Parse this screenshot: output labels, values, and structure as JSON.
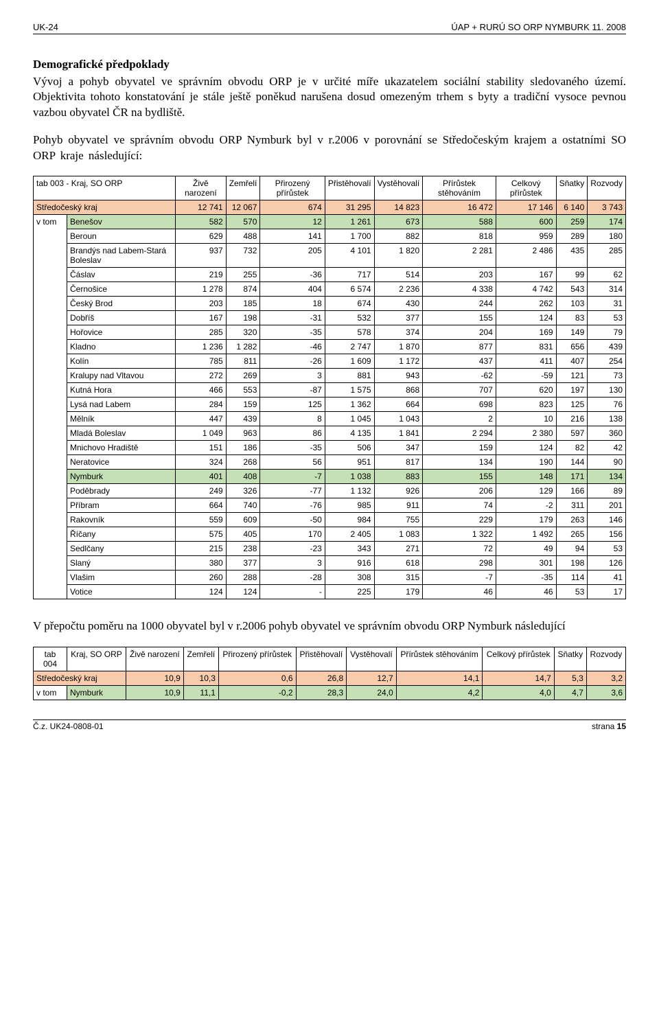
{
  "header": {
    "left": "UK-24",
    "right": "ÚAP + RURÚ SO ORP NYMBURK 11. 2008"
  },
  "section_title": "Demografické předpoklady",
  "para1": "Vývoj a pohyb obyvatel ve správním obvodu ORP je v určité míře ukazatelem sociální stability sledovaného území. Objektivita tohoto konstatování je stále ještě poněkud narušena dosud omezeným trhem s byty a tradiční vysoce pevnou vazbou obyvatel ČR na bydliště.",
  "para2": "Pohyb obyvatel ve správním obvodu ORP Nymburk byl v r.2006 v porovnání se Středočeským krajem a ostatními SO ORP kraje následující:",
  "table003": {
    "header_label": "tab 003 - Kraj, SO ORP",
    "columns": [
      "Živě narození",
      "Zemřelí",
      "Přirozený přírůstek",
      "Přistěhovalí",
      "Vystěhovalí",
      "Přírůstek stěhováním",
      "Celkový přírůstek",
      "Sňatky",
      "Rozvody"
    ],
    "first_label_col2": "Benešov",
    "vtom_label": "v tom",
    "rows": [
      {
        "label": [
          "Středočeský kraj"
        ],
        "span": 2,
        "highlight": "pink",
        "cells": [
          "12 741",
          "12 067",
          "674",
          "31 295",
          "14 823",
          "16 472",
          "17 146",
          "6 140",
          "3 743"
        ]
      },
      {
        "label": [
          "v tom",
          "Benešov"
        ],
        "span": 0,
        "highlight": "green",
        "cells": [
          "582",
          "570",
          "12",
          "1 261",
          "673",
          "588",
          "600",
          "259",
          "174"
        ]
      },
      {
        "label": [
          "Beroun"
        ],
        "span": 1,
        "cells": [
          "629",
          "488",
          "141",
          "1 700",
          "882",
          "818",
          "959",
          "289",
          "180"
        ]
      },
      {
        "label": [
          "Brandýs nad Labem-Stará Boleslav"
        ],
        "span": 1,
        "cells": [
          "937",
          "732",
          "205",
          "4 101",
          "1 820",
          "2 281",
          "2 486",
          "435",
          "285"
        ]
      },
      {
        "label": [
          "Čáslav"
        ],
        "span": 1,
        "cells": [
          "219",
          "255",
          "-36",
          "717",
          "514",
          "203",
          "167",
          "99",
          "62"
        ]
      },
      {
        "label": [
          "Černošice"
        ],
        "span": 1,
        "cells": [
          "1 278",
          "874",
          "404",
          "6 574",
          "2 236",
          "4 338",
          "4 742",
          "543",
          "314"
        ]
      },
      {
        "label": [
          "Český Brod"
        ],
        "span": 1,
        "cells": [
          "203",
          "185",
          "18",
          "674",
          "430",
          "244",
          "262",
          "103",
          "31"
        ]
      },
      {
        "label": [
          "Dobříš"
        ],
        "span": 1,
        "cells": [
          "167",
          "198",
          "-31",
          "532",
          "377",
          "155",
          "124",
          "83",
          "53"
        ]
      },
      {
        "label": [
          "Hořovice"
        ],
        "span": 1,
        "cells": [
          "285",
          "320",
          "-35",
          "578",
          "374",
          "204",
          "169",
          "149",
          "79"
        ]
      },
      {
        "label": [
          "Kladno"
        ],
        "span": 1,
        "cells": [
          "1 236",
          "1 282",
          "-46",
          "2 747",
          "1 870",
          "877",
          "831",
          "656",
          "439"
        ]
      },
      {
        "label": [
          "Kolín"
        ],
        "span": 1,
        "cells": [
          "785",
          "811",
          "-26",
          "1 609",
          "1 172",
          "437",
          "411",
          "407",
          "254"
        ]
      },
      {
        "label": [
          "Kralupy nad Vltavou"
        ],
        "span": 1,
        "cells": [
          "272",
          "269",
          "3",
          "881",
          "943",
          "-62",
          "-59",
          "121",
          "73"
        ]
      },
      {
        "label": [
          "Kutná Hora"
        ],
        "span": 1,
        "cells": [
          "466",
          "553",
          "-87",
          "1 575",
          "868",
          "707",
          "620",
          "197",
          "130"
        ]
      },
      {
        "label": [
          "Lysá nad Labem"
        ],
        "span": 1,
        "cells": [
          "284",
          "159",
          "125",
          "1 362",
          "664",
          "698",
          "823",
          "125",
          "76"
        ]
      },
      {
        "label": [
          "Mělník"
        ],
        "span": 1,
        "cells": [
          "447",
          "439",
          "8",
          "1 045",
          "1 043",
          "2",
          "10",
          "216",
          "138"
        ]
      },
      {
        "label": [
          "Mladá Boleslav"
        ],
        "span": 1,
        "cells": [
          "1 049",
          "963",
          "86",
          "4 135",
          "1 841",
          "2 294",
          "2 380",
          "597",
          "360"
        ]
      },
      {
        "label": [
          "Mnichovo Hradiště"
        ],
        "span": 1,
        "cells": [
          "151",
          "186",
          "-35",
          "506",
          "347",
          "159",
          "124",
          "82",
          "42"
        ]
      },
      {
        "label": [
          "Neratovice"
        ],
        "span": 1,
        "cells": [
          "324",
          "268",
          "56",
          "951",
          "817",
          "134",
          "190",
          "144",
          "90"
        ]
      },
      {
        "label": [
          "Nymburk"
        ],
        "span": 1,
        "highlight": "green",
        "cells": [
          "401",
          "408",
          "-7",
          "1 038",
          "883",
          "155",
          "148",
          "171",
          "134"
        ]
      },
      {
        "label": [
          "Poděbrady"
        ],
        "span": 1,
        "cells": [
          "249",
          "326",
          "-77",
          "1 132",
          "926",
          "206",
          "129",
          "166",
          "89"
        ]
      },
      {
        "label": [
          "Příbram"
        ],
        "span": 1,
        "cells": [
          "664",
          "740",
          "-76",
          "985",
          "911",
          "74",
          "-2",
          "311",
          "201"
        ]
      },
      {
        "label": [
          "Rakovník"
        ],
        "span": 1,
        "cells": [
          "559",
          "609",
          "-50",
          "984",
          "755",
          "229",
          "179",
          "263",
          "146"
        ]
      },
      {
        "label": [
          "Říčany"
        ],
        "span": 1,
        "cells": [
          "575",
          "405",
          "170",
          "2 405",
          "1 083",
          "1 322",
          "1 492",
          "265",
          "156"
        ]
      },
      {
        "label": [
          "Sedlčany"
        ],
        "span": 1,
        "cells": [
          "215",
          "238",
          "-23",
          "343",
          "271",
          "72",
          "49",
          "94",
          "53"
        ]
      },
      {
        "label": [
          "Slaný"
        ],
        "span": 1,
        "cells": [
          "380",
          "377",
          "3",
          "916",
          "618",
          "298",
          "301",
          "198",
          "126"
        ]
      },
      {
        "label": [
          "Vlašim"
        ],
        "span": 1,
        "cells": [
          "260",
          "288",
          "-28",
          "308",
          "315",
          "-7",
          "-35",
          "114",
          "41"
        ]
      },
      {
        "label": [
          "Votice"
        ],
        "span": 1,
        "cells": [
          "124",
          "124",
          "-",
          "225",
          "179",
          "46",
          "46",
          "53",
          "17"
        ]
      }
    ]
  },
  "para3": "V přepočtu poměru na 1000 obyvatel byl v r.2006 pohyb obyvatel ve správním obvodu ORP Nymburk následující",
  "table004": {
    "header_label1": "tab 004",
    "header_label2": "Kraj, SO ORP",
    "columns": [
      "Živě narození",
      "Zemřelí",
      "Přirozený přírůstek",
      "Přistěhovalí",
      "Vystěhovalí",
      "Přírůstek stěhováním",
      "Celkový přírůstek",
      "Sňatky",
      "Rozvody"
    ],
    "rows": [
      {
        "label": [
          "Středočeský kraj"
        ],
        "span": 2,
        "highlight": "pink",
        "cells": [
          "10,9",
          "10,3",
          "0,6",
          "26,8",
          "12,7",
          "14,1",
          "14,7",
          "5,3",
          "3,2"
        ]
      },
      {
        "label": [
          "v tom",
          "Nymburk"
        ],
        "span": 0,
        "highlight": "green",
        "cells": [
          "10,9",
          "11,1",
          "-0,2",
          "28,3",
          "24,0",
          "4,2",
          "4,0",
          "4,7",
          "3,6"
        ]
      }
    ]
  },
  "footer": {
    "left": "Č.z. UK24-0808-01",
    "right_label": "strana ",
    "right_page": "15"
  },
  "colors": {
    "green": "#c5e0b4",
    "pink": "#f8cbad"
  }
}
